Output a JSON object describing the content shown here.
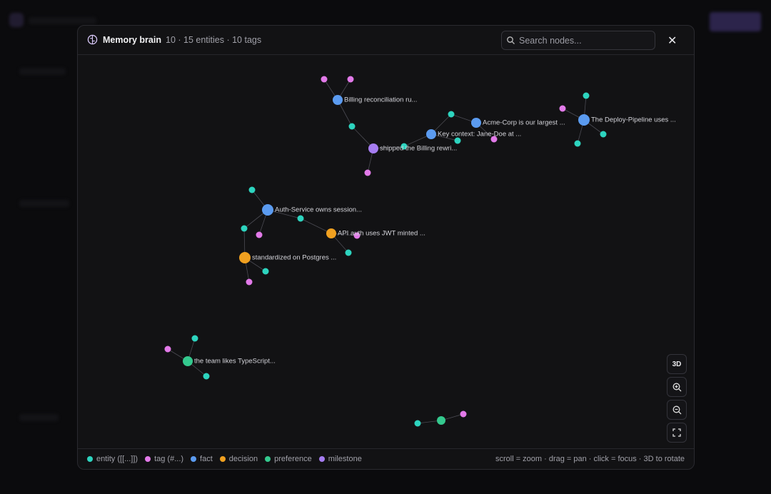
{
  "header": {
    "title": "Memory brain",
    "stats": "10 · 15 entities · 10 tags",
    "search_placeholder": "Search nodes..."
  },
  "controls": {
    "mode": "3D"
  },
  "nodes": [
    {
      "label": "Billing reconciliation ru...",
      "kind": "fact"
    },
    {
      "label": "Acme-Corp is our largest ...",
      "kind": "fact"
    },
    {
      "label": "The Deploy-Pipeline uses ...",
      "kind": "fact"
    },
    {
      "label": "Key context: Jane-Doe at ...",
      "kind": "fact"
    },
    {
      "label": "shipped the Billing rewri...",
      "kind": "milestone"
    },
    {
      "label": "Auth-Service owns session...",
      "kind": "fact"
    },
    {
      "label": "API auth uses JWT minted ...",
      "kind": "decision"
    },
    {
      "label": "standardized on Postgres ...",
      "kind": "decision"
    },
    {
      "label": "the team likes TypeScript...",
      "kind": "preference"
    }
  ],
  "legend": [
    {
      "label": "entity ([[...]])",
      "color": "#2dd4bf"
    },
    {
      "label": "tag (#...)",
      "color": "#e27ae9"
    },
    {
      "label": "fact",
      "color": "#5b9bf0"
    },
    {
      "label": "decision",
      "color": "#f0a020"
    },
    {
      "label": "preference",
      "color": "#34c98e"
    },
    {
      "label": "milestone",
      "color": "#a57cf0"
    }
  ],
  "hint": "scroll = zoom · drag = pan · click = focus · 3D to rotate"
}
